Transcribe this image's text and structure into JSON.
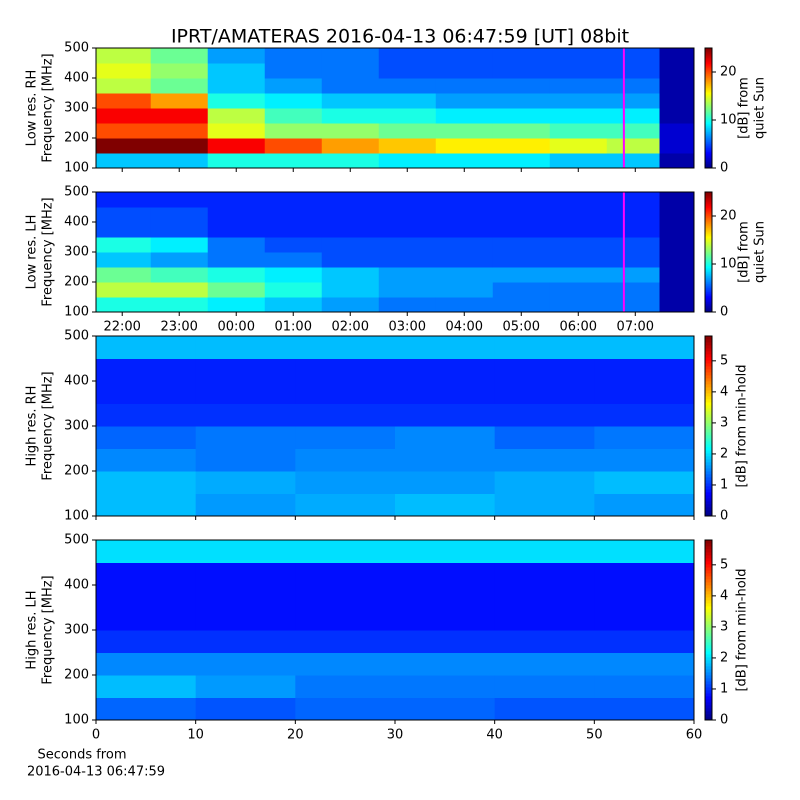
{
  "title": "IPRT/AMATERAS 2016-04-13 06:47:59 [UT]   08bit",
  "footer_label": [
    "Seconds from",
    "2016-04-13 06:47:59"
  ],
  "chart_data": [
    {
      "type": "heatmap",
      "ylabel": [
        "Low res. RH",
        "Frequency [MHz]"
      ],
      "x": [
        22,
        23,
        24,
        25,
        26,
        27,
        28,
        29,
        30,
        31,
        31.85
      ],
      "y": [
        125,
        175,
        225,
        275,
        325,
        375,
        425,
        475
      ],
      "values": [
        [
          8,
          8,
          10,
          10,
          10,
          9,
          9,
          9,
          8,
          8,
          1
        ],
        [
          25,
          25,
          22,
          20,
          18,
          17,
          16,
          16,
          15,
          14,
          2
        ],
        [
          20,
          20,
          15,
          13,
          13,
          12,
          12,
          12,
          11,
          11,
          2
        ],
        [
          22,
          22,
          14,
          11,
          10,
          10,
          9,
          9,
          9,
          9,
          1
        ],
        [
          20,
          18,
          10,
          9,
          8,
          8,
          7,
          7,
          7,
          7,
          1
        ],
        [
          14,
          12,
          8,
          7,
          6,
          6,
          6,
          6,
          6,
          6,
          1
        ],
        [
          15,
          13,
          8,
          6,
          6,
          5,
          5,
          5,
          5,
          5,
          1
        ],
        [
          14,
          12,
          7,
          6,
          6,
          5,
          5,
          5,
          5,
          5,
          1
        ]
      ],
      "xlim": [
        21.54,
        32.03
      ],
      "ylim": [
        100,
        500
      ],
      "xticks": [
        {
          "value": 22,
          "label": "22:00"
        },
        {
          "value": 23,
          "label": "23:00"
        },
        {
          "value": 24,
          "label": "00:00"
        },
        {
          "value": 25,
          "label": "01:00"
        },
        {
          "value": 26,
          "label": "02:00"
        },
        {
          "value": 27,
          "label": "03:00"
        },
        {
          "value": 28,
          "label": "04:00"
        },
        {
          "value": 29,
          "label": "05:00"
        },
        {
          "value": 30,
          "label": "06:00"
        },
        {
          "value": 31,
          "label": "07:00"
        }
      ],
      "xticklabels": false,
      "yticks": [
        100,
        200,
        300,
        400,
        500
      ],
      "cursor": {
        "x": 30.8,
        "color": "#ff00ff"
      },
      "colorbar": {
        "colormap": "jet",
        "lim": [
          0,
          25
        ],
        "ticks": [
          0,
          10,
          20
        ],
        "label": [
          "[dB] from",
          "quiet Sun"
        ]
      }
    },
    {
      "type": "heatmap",
      "ylabel": [
        "Low res. LH",
        "Frequency [MHz]"
      ],
      "x": [
        22,
        23,
        24,
        25,
        26,
        27,
        28,
        29,
        30,
        31,
        31.85
      ],
      "y": [
        125,
        175,
        225,
        275,
        325,
        375,
        425,
        475
      ],
      "values": [
        [
          10,
          10,
          9,
          8,
          7,
          6,
          6,
          6,
          6,
          6,
          1
        ],
        [
          14,
          14,
          12,
          10,
          8,
          7,
          7,
          6,
          6,
          6,
          1
        ],
        [
          12,
          11,
          10,
          9,
          8,
          7,
          7,
          7,
          7,
          7,
          1
        ],
        [
          8,
          7,
          6,
          6,
          5,
          5,
          5,
          5,
          5,
          5,
          1
        ],
        [
          10,
          9,
          6,
          5,
          5,
          5,
          5,
          5,
          5,
          5,
          1
        ],
        [
          5,
          5,
          4,
          4,
          4,
          4,
          4,
          4,
          4,
          4,
          1
        ],
        [
          5,
          5,
          4,
          4,
          4,
          4,
          4,
          4,
          4,
          4,
          1
        ],
        [
          4,
          4,
          4,
          4,
          4,
          4,
          4,
          4,
          4,
          4,
          1
        ]
      ],
      "xlim": [
        21.54,
        32.03
      ],
      "ylim": [
        100,
        500
      ],
      "xticks": [
        {
          "value": 22,
          "label": "22:00"
        },
        {
          "value": 23,
          "label": "23:00"
        },
        {
          "value": 24,
          "label": "00:00"
        },
        {
          "value": 25,
          "label": "01:00"
        },
        {
          "value": 26,
          "label": "02:00"
        },
        {
          "value": 27,
          "label": "03:00"
        },
        {
          "value": 28,
          "label": "04:00"
        },
        {
          "value": 29,
          "label": "05:00"
        },
        {
          "value": 30,
          "label": "06:00"
        },
        {
          "value": 31,
          "label": "07:00"
        }
      ],
      "xticklabels": true,
      "yticks": [
        100,
        200,
        300,
        400,
        500
      ],
      "cursor": {
        "x": 30.8,
        "color": "#ff00ff"
      },
      "colorbar": {
        "colormap": "jet",
        "lim": [
          0,
          25
        ],
        "ticks": [
          0,
          10,
          20
        ],
        "label": [
          "[dB] from",
          "quiet Sun"
        ]
      }
    },
    {
      "type": "heatmap",
      "ylabel": [
        "High res. RH",
        "Frequency [MHz]"
      ],
      "x": [
        5,
        15,
        25,
        35,
        45,
        55
      ],
      "y": [
        125,
        175,
        225,
        275,
        325,
        375,
        425,
        475
      ],
      "values": [
        [
          1.8,
          1.6,
          1.7,
          1.8,
          1.7,
          1.6
        ],
        [
          1.8,
          1.7,
          1.6,
          1.6,
          1.7,
          1.8
        ],
        [
          1.5,
          1.4,
          1.5,
          1.5,
          1.5,
          1.5
        ],
        [
          1.3,
          1.4,
          1.4,
          1.5,
          1.3,
          1.4
        ],
        [
          1.0,
          1.0,
          1.0,
          1.0,
          1.0,
          1.0
        ],
        [
          0.9,
          0.9,
          0.9,
          0.9,
          0.9,
          0.9
        ],
        [
          0.9,
          0.9,
          0.9,
          0.9,
          0.9,
          0.9
        ],
        [
          1.8,
          1.8,
          1.8,
          1.8,
          1.8,
          1.8
        ]
      ],
      "xlim": [
        0,
        60
      ],
      "ylim": [
        100,
        500
      ],
      "xticks": [
        0,
        10,
        20,
        30,
        40,
        50,
        60
      ],
      "xticklabels": false,
      "yticks": [
        100,
        200,
        300,
        400,
        500
      ],
      "colorbar": {
        "colormap": "jet",
        "lim": [
          0,
          5.8
        ],
        "ticks": [
          0,
          1,
          2,
          3,
          4,
          5
        ],
        "label": [
          "[dB] from min-hold"
        ]
      }
    },
    {
      "type": "heatmap",
      "ylabel": [
        "High res. LH",
        "Frequency [MHz]"
      ],
      "x": [
        5,
        15,
        25,
        35,
        45,
        55
      ],
      "y": [
        125,
        175,
        225,
        275,
        325,
        375,
        425,
        475
      ],
      "values": [
        [
          1.3,
          1.2,
          1.3,
          1.3,
          1.2,
          1.2
        ],
        [
          1.8,
          1.6,
          1.4,
          1.4,
          1.4,
          1.4
        ],
        [
          1.5,
          1.5,
          1.5,
          1.5,
          1.5,
          1.5
        ],
        [
          1.0,
          1.0,
          1.0,
          1.0,
          1.0,
          1.0
        ],
        [
          0.8,
          0.8,
          0.8,
          0.8,
          0.8,
          0.8
        ],
        [
          0.8,
          0.8,
          0.8,
          0.8,
          0.8,
          0.8
        ],
        [
          0.8,
          0.8,
          0.8,
          0.8,
          0.8,
          0.8
        ],
        [
          2.0,
          2.0,
          2.0,
          2.0,
          2.0,
          2.0
        ]
      ],
      "xlim": [
        0,
        60
      ],
      "ylim": [
        100,
        500
      ],
      "xticks": [
        0,
        10,
        20,
        30,
        40,
        50,
        60
      ],
      "xticklabels": true,
      "yticks": [
        100,
        200,
        300,
        400,
        500
      ],
      "colorbar": {
        "colormap": "jet",
        "lim": [
          0,
          5.8
        ],
        "ticks": [
          0,
          1,
          2,
          3,
          4,
          5
        ],
        "label": [
          "[dB] from min-hold"
        ]
      }
    }
  ]
}
